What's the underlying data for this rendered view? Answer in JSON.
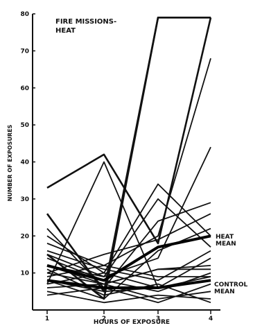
{
  "chart_data": {
    "type": "line",
    "title": "FIRE MISSIONS-\nHEAT",
    "xlabel": "HOURS OF EXPOSURE",
    "ylabel": "NUMBER OF EXPOSURES",
    "categories": [
      "1",
      "2",
      "3",
      "4"
    ],
    "ylim": [
      0,
      80
    ],
    "yticks": [
      "10",
      "20",
      "30",
      "40",
      "50",
      "60",
      "70",
      "80"
    ],
    "grid": false,
    "annotations": {
      "heat_mean": "HEAT\nMEAN",
      "control_mean": "CONTROL\nMEAN"
    },
    "series": [
      {
        "values": [
          33,
          42,
          18,
          79
        ],
        "thick": true
      },
      {
        "values": [
          26,
          5,
          79,
          79
        ],
        "thick": true
      },
      {
        "values": [
          15,
          3,
          79,
          79
        ],
        "thick": true
      },
      {
        "values": [
          12,
          9,
          30,
          17
        ]
      },
      {
        "values": [
          20,
          10,
          34,
          20
        ]
      },
      {
        "values": [
          7,
          40,
          6,
          14
        ]
      },
      {
        "values": [
          18,
          12,
          20,
          68
        ]
      },
      {
        "values": [
          15,
          9,
          14,
          44
        ]
      },
      {
        "values": [
          22,
          6,
          24,
          29
        ]
      },
      {
        "values": [
          10,
          15,
          19,
          26
        ]
      },
      {
        "values": [
          8,
          3,
          16,
          22
        ]
      },
      {
        "values": [
          16,
          11,
          8,
          16
        ]
      },
      {
        "values": [
          12,
          7,
          11,
          12
        ]
      },
      {
        "values": [
          14,
          8,
          5,
          10
        ]
      },
      {
        "values": [
          9,
          12,
          9,
          9
        ]
      },
      {
        "values": [
          8,
          5,
          6,
          8
        ]
      },
      {
        "values": [
          6,
          7,
          3,
          5
        ]
      },
      {
        "values": [
          5,
          2,
          4,
          3
        ]
      },
      {
        "values": [
          4,
          6,
          2,
          7
        ]
      },
      {
        "values": [
          11,
          4,
          7,
          2
        ]
      },
      {
        "values": [
          7,
          10,
          6,
          9
        ]
      },
      {
        "values": [
          10,
          7,
          11,
          11
        ]
      }
    ],
    "means": [
      {
        "name": "HEAT MEAN",
        "values": [
          12,
          8,
          17,
          20
        ]
      },
      {
        "name": "CONTROL MEAN",
        "values": [
          8,
          6,
          6,
          8
        ]
      }
    ]
  }
}
